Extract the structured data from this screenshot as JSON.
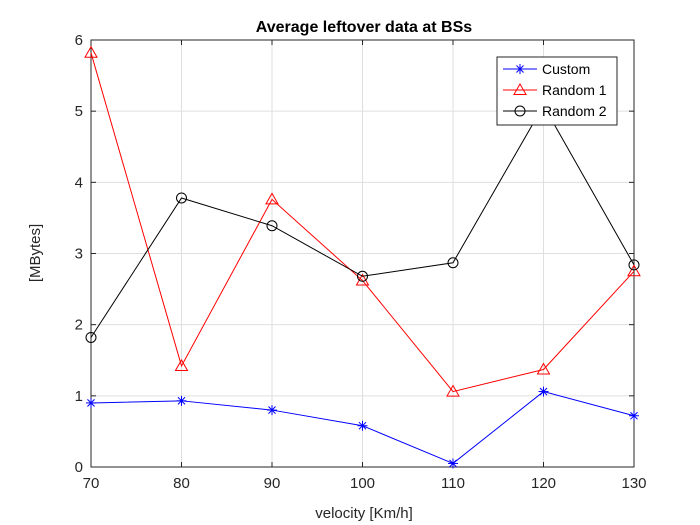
{
  "chart_data": {
    "type": "line",
    "title": "Average leftover data at BSs",
    "xlabel": "velocity [Km/h]",
    "ylabel": "[MBytes]",
    "x": [
      70,
      80,
      90,
      100,
      110,
      120,
      130
    ],
    "xlim": [
      70,
      130
    ],
    "ylim": [
      0,
      6
    ],
    "xticks": [
      70,
      80,
      90,
      100,
      110,
      120,
      130
    ],
    "yticks": [
      0,
      1,
      2,
      3,
      4,
      5,
      6
    ],
    "grid": true,
    "legend_position": "top-right",
    "series": [
      {
        "name": "Custom",
        "values": [
          0.9,
          0.93,
          0.8,
          0.58,
          0.05,
          1.06,
          0.72
        ],
        "color": "#0000ff",
        "marker": "asterisk"
      },
      {
        "name": "Random 1",
        "values": [
          5.82,
          1.42,
          3.76,
          2.62,
          1.06,
          1.37,
          2.75
        ],
        "color": "#ff0000",
        "marker": "triangle"
      },
      {
        "name": "Random 2",
        "values": [
          1.82,
          3.78,
          3.39,
          2.68,
          2.87,
          5.08,
          2.84
        ],
        "color": "#000000",
        "marker": "circle"
      }
    ]
  }
}
